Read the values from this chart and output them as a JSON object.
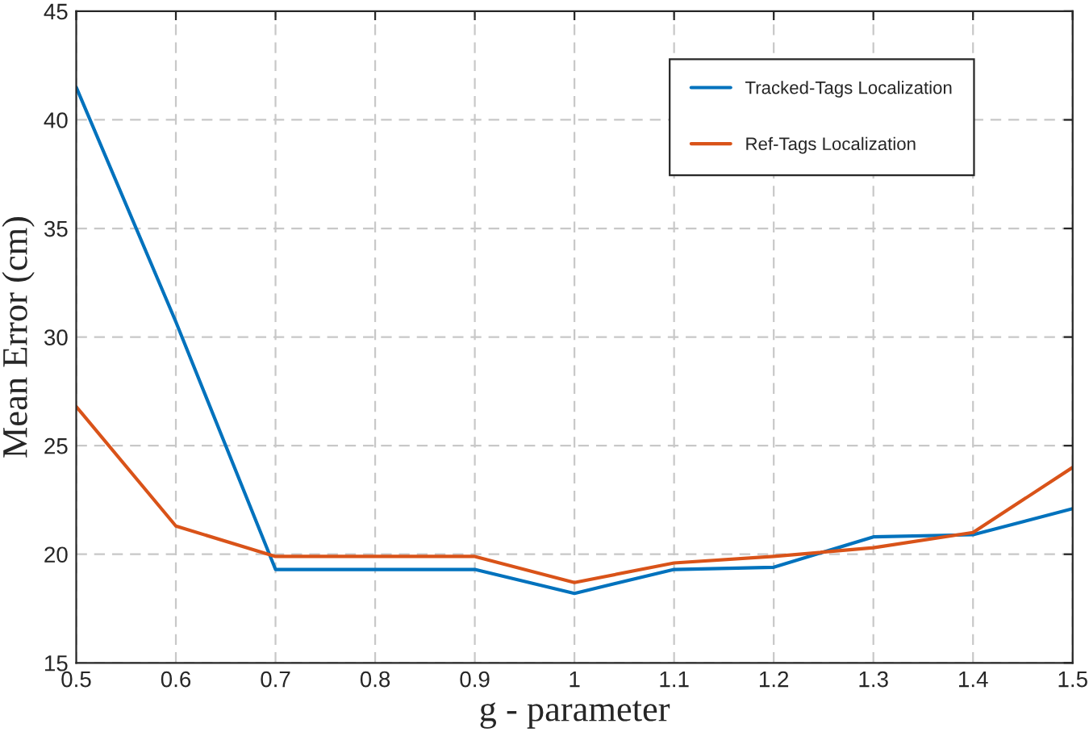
{
  "chart_data": {
    "type": "line",
    "xlabel": "g - parameter",
    "ylabel": "Mean Error (cm)",
    "x": [
      0.5,
      0.6,
      0.7,
      0.8,
      0.9,
      1.0,
      1.1,
      1.2,
      1.3,
      1.4,
      1.5
    ],
    "series": [
      {
        "name": "Tracked-Tags Localization",
        "color": "#0072bd",
        "values": [
          41.5,
          30.7,
          19.3,
          19.3,
          19.3,
          18.2,
          19.3,
          19.4,
          20.8,
          20.9,
          22.1
        ]
      },
      {
        "name": "Ref-Tags Localization",
        "color": "#d95319",
        "values": [
          26.8,
          21.3,
          19.9,
          19.9,
          19.9,
          18.7,
          19.6,
          19.9,
          20.3,
          21.0,
          24.0
        ]
      }
    ],
    "xlim": [
      0.5,
      1.5
    ],
    "xticks": [
      0.5,
      0.6,
      0.7,
      0.8,
      0.9,
      1,
      1.1,
      1.2,
      1.3,
      1.4,
      1.5
    ],
    "ylim": [
      15,
      45
    ],
    "yticks": [
      15,
      20,
      25,
      30,
      35,
      40,
      45
    ],
    "grid": true,
    "legend": "top right",
    "line_style": "solid",
    "marker": "none"
  }
}
